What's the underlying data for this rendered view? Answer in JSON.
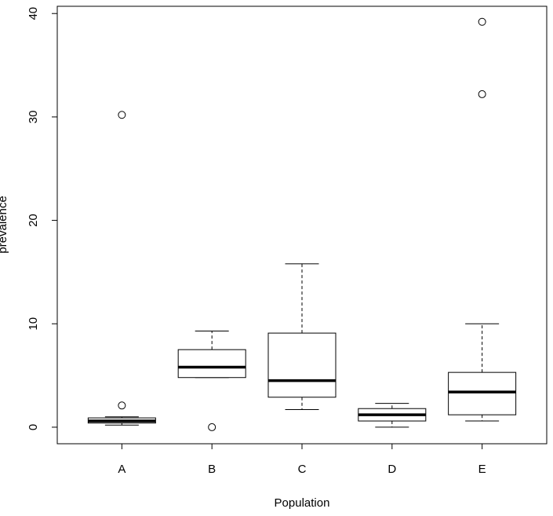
{
  "chart_data": {
    "type": "box",
    "x_label": "Population",
    "y_label": "prevalence",
    "categories": [
      "A",
      "B",
      "C",
      "D",
      "E"
    ],
    "boxes": [
      {
        "whisker_low": 0.2,
        "q1": 0.4,
        "median": 0.6,
        "q3": 0.9,
        "whisker_high": 1.0,
        "outliers": [
          2.1,
          30.2
        ]
      },
      {
        "whisker_low": 4.8,
        "q1": 4.8,
        "median": 5.8,
        "q3": 7.5,
        "whisker_high": 9.3,
        "outliers": [
          0
        ]
      },
      {
        "whisker_low": 1.7,
        "q1": 2.9,
        "median": 4.5,
        "q3": 9.1,
        "whisker_high": 15.8,
        "outliers": []
      },
      {
        "whisker_low": 0,
        "q1": 0.6,
        "median": 1.2,
        "q3": 1.8,
        "whisker_high": 2.3,
        "outliers": []
      },
      {
        "whisker_low": 0.6,
        "q1": 1.2,
        "median": 3.4,
        "q3": 5.3,
        "whisker_high": 10,
        "outliers": [
          32.2,
          39.2
        ]
      }
    ],
    "color": "#000000",
    "ylim": [
      -1.6,
      40.7
    ],
    "yticks": [
      0,
      10,
      20,
      30,
      40
    ]
  }
}
